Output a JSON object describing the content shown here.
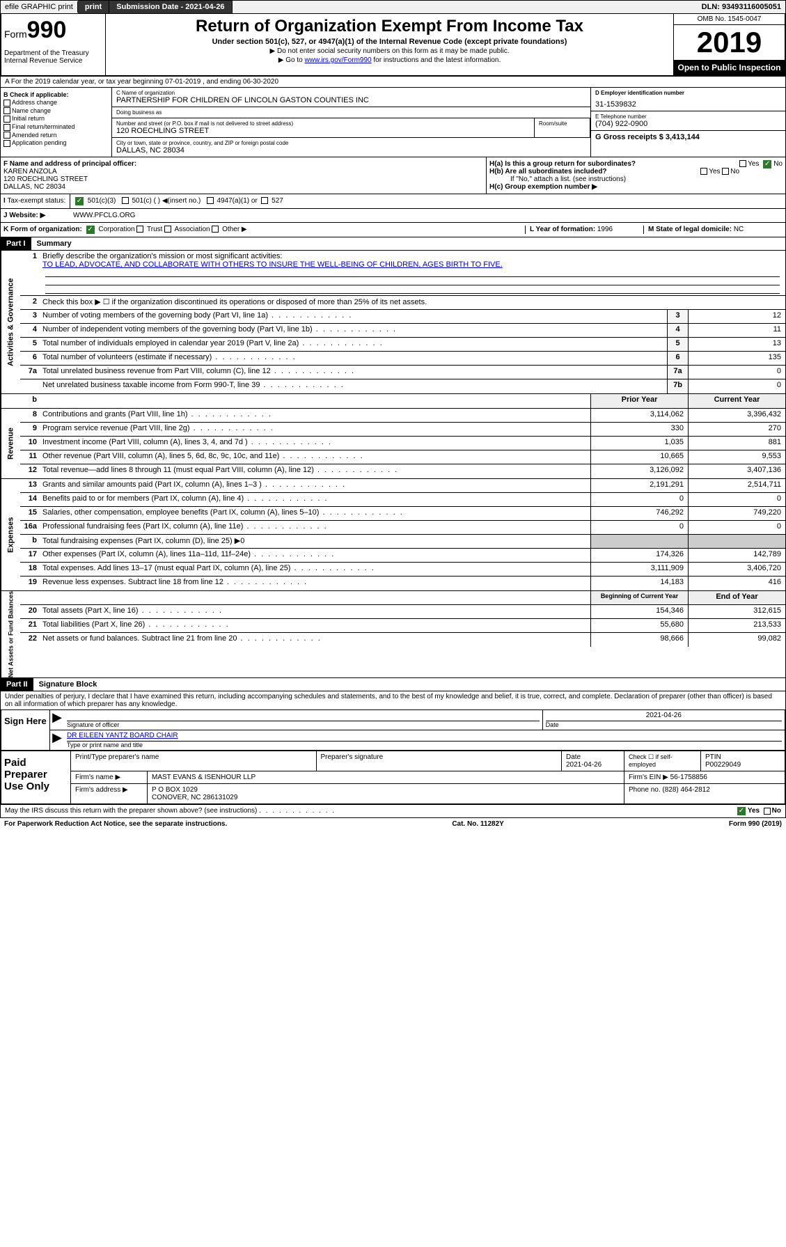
{
  "top": {
    "efile": "efile GRAPHIC print",
    "submission": "Submission Date - 2021-04-26",
    "dln": "DLN: 93493116005051"
  },
  "header": {
    "form_prefix": "Form",
    "form_num": "990",
    "dept": "Department of the Treasury\nInternal Revenue Service",
    "title": "Return of Organization Exempt From Income Tax",
    "subtitle": "Under section 501(c), 527, or 4947(a)(1) of the Internal Revenue Code (except private foundations)",
    "note1": "▶ Do not enter social security numbers on this form as it may be made public.",
    "note2_pre": "▶ Go to ",
    "note2_link": "www.irs.gov/Form990",
    "note2_post": " for instructions and the latest information.",
    "omb": "OMB No. 1545-0047",
    "year": "2019",
    "open": "Open to Public Inspection"
  },
  "line_a": "A For the 2019 calendar year, or tax year beginning 07-01-2019    , and ending 06-30-2020",
  "b": {
    "label": "B Check if applicable:",
    "items": [
      "Address change",
      "Name change",
      "Initial return",
      "Final return/terminated",
      "Amended return",
      "Application pending"
    ]
  },
  "c": {
    "name_lbl": "C Name of organization",
    "name": "PARTNERSHIP FOR CHILDREN OF LINCOLN GASTON COUNTIES INC",
    "dba_lbl": "Doing business as",
    "dba": "",
    "addr_lbl": "Number and street (or P.O. box if mail is not delivered to street address)",
    "addr": "120 ROECHLING STREET",
    "room_lbl": "Room/suite",
    "city_lbl": "City or town, state or province, country, and ZIP or foreign postal code",
    "city": "DALLAS, NC  28034"
  },
  "d": {
    "lbl": "D Employer identification number",
    "val": "31-1539832"
  },
  "e": {
    "lbl": "E Telephone number",
    "val": "(704) 922-0900"
  },
  "g": {
    "lbl": "G Gross receipts $ 3,413,144"
  },
  "f": {
    "lbl": "F  Name and address of principal officer:",
    "name": "KAREN ANZOLA",
    "addr1": "120 ROECHLING STREET",
    "addr2": "DALLAS, NC  28034"
  },
  "h": {
    "a": "H(a)  Is this a group return for subordinates?",
    "b": "H(b)  Are all subordinates included?",
    "note": "If \"No,\" attach a list. (see instructions)",
    "c": "H(c)  Group exemption number ▶",
    "yes": "Yes",
    "no": "No"
  },
  "i": {
    "lbl": "Tax-exempt status:",
    "c3": "501(c)(3)",
    "c": "501(c) ( )",
    "ins": "◀(insert no.)",
    "a1": "4947(a)(1) or",
    "527": "527"
  },
  "j": {
    "lbl": "Website: ▶",
    "val": " WWW.PFCLG.ORG"
  },
  "k": {
    "lbl": "K Form of organization:",
    "corp": "Corporation",
    "trust": "Trust",
    "assoc": "Association",
    "other": "Other ▶",
    "l_lbl": "L Year of formation: ",
    "l_val": "1996",
    "m_lbl": "M State of legal domicile: ",
    "m_val": "NC"
  },
  "part1": {
    "hdr": "Part I",
    "title": "Summary"
  },
  "gov": {
    "side": "Activities & Governance",
    "q1": "Briefly describe the organization's mission or most significant activities:",
    "q1_val": "TO LEAD, ADVOCATE, AND COLLABORATE WITH OTHERS TO INSURE THE WELL-BEING OF CHILDREN, AGES BIRTH TO FIVE.",
    "q2": "Check this box ▶ ☐  if the organization discontinued its operations or disposed of more than 25% of its net assets.",
    "rows": [
      {
        "n": "3",
        "t": "Number of voting members of the governing body (Part VI, line 1a)",
        "c": "3",
        "v": "12"
      },
      {
        "n": "4",
        "t": "Number of independent voting members of the governing body (Part VI, line 1b)",
        "c": "4",
        "v": "11"
      },
      {
        "n": "5",
        "t": "Total number of individuals employed in calendar year 2019 (Part V, line 2a)",
        "c": "5",
        "v": "13"
      },
      {
        "n": "6",
        "t": "Total number of volunteers (estimate if necessary)",
        "c": "6",
        "v": "135"
      },
      {
        "n": "7a",
        "t": "Total unrelated business revenue from Part VIII, column (C), line 12",
        "c": "7a",
        "v": "0"
      },
      {
        "n": "",
        "t": "Net unrelated business taxable income from Form 990-T, line 39",
        "c": "7b",
        "v": "0"
      }
    ]
  },
  "rev": {
    "side": "Revenue",
    "hdr_prior": "Prior Year",
    "hdr_cur": "Current Year",
    "rows": [
      {
        "n": "8",
        "t": "Contributions and grants (Part VIII, line 1h)",
        "p": "3,114,062",
        "c": "3,396,432"
      },
      {
        "n": "9",
        "t": "Program service revenue (Part VIII, line 2g)",
        "p": "330",
        "c": "270"
      },
      {
        "n": "10",
        "t": "Investment income (Part VIII, column (A), lines 3, 4, and 7d )",
        "p": "1,035",
        "c": "881"
      },
      {
        "n": "11",
        "t": "Other revenue (Part VIII, column (A), lines 5, 6d, 8c, 9c, 10c, and 11e)",
        "p": "10,665",
        "c": "9,553"
      },
      {
        "n": "12",
        "t": "Total revenue—add lines 8 through 11 (must equal Part VIII, column (A), line 12)",
        "p": "3,126,092",
        "c": "3,407,136"
      }
    ]
  },
  "exp": {
    "side": "Expenses",
    "rows": [
      {
        "n": "13",
        "t": "Grants and similar amounts paid (Part IX, column (A), lines 1–3 )",
        "p": "2,191,291",
        "c": "2,514,711"
      },
      {
        "n": "14",
        "t": "Benefits paid to or for members (Part IX, column (A), line 4)",
        "p": "0",
        "c": "0"
      },
      {
        "n": "15",
        "t": "Salaries, other compensation, employee benefits (Part IX, column (A), lines 5–10)",
        "p": "746,292",
        "c": "749,220"
      },
      {
        "n": "16a",
        "t": "Professional fundraising fees (Part IX, column (A), line 11e)",
        "p": "0",
        "c": "0"
      },
      {
        "n": "b",
        "t": "Total fundraising expenses (Part IX, column (D), line 25) ▶0",
        "p": "",
        "c": ""
      },
      {
        "n": "17",
        "t": "Other expenses (Part IX, column (A), lines 11a–11d, 11f–24e)",
        "p": "174,326",
        "c": "142,789"
      },
      {
        "n": "18",
        "t": "Total expenses. Add lines 13–17 (must equal Part IX, column (A), line 25)",
        "p": "3,111,909",
        "c": "3,406,720"
      },
      {
        "n": "19",
        "t": "Revenue less expenses. Subtract line 18 from line 12",
        "p": "14,183",
        "c": "416"
      }
    ]
  },
  "net": {
    "side": "Net Assets or Fund Balances",
    "hdr_beg": "Beginning of Current Year",
    "hdr_end": "End of Year",
    "rows": [
      {
        "n": "20",
        "t": "Total assets (Part X, line 16)",
        "p": "154,346",
        "c": "312,615"
      },
      {
        "n": "21",
        "t": "Total liabilities (Part X, line 26)",
        "p": "55,680",
        "c": "213,533"
      },
      {
        "n": "22",
        "t": "Net assets or fund balances. Subtract line 21 from line 20",
        "p": "98,666",
        "c": "99,082"
      }
    ]
  },
  "part2": {
    "hdr": "Part II",
    "title": "Signature Block"
  },
  "penalty": "Under penalties of perjury, I declare that I have examined this return, including accompanying schedules and statements, and to the best of my knowledge and belief, it is true, correct, and complete. Declaration of preparer (other than officer) is based on all information of which preparer has any knowledge.",
  "sign": {
    "left": "Sign Here",
    "date": "2021-04-26",
    "sig_lbl": "Signature of officer",
    "date_lbl": "Date",
    "name": "DR EILEEN YANTZ  BOARD CHAIR",
    "name_lbl": "Type or print name and title"
  },
  "paid": {
    "left": "Paid Preparer Use Only",
    "h1": "Print/Type preparer's name",
    "h2": "Preparer's signature",
    "h3": "Date",
    "h4": "Check ☐ if self-employed",
    "h5": "PTIN",
    "date": "2021-04-26",
    "ptin": "P00229049",
    "firm_lbl": "Firm's name    ▶",
    "firm": "MAST EVANS & ISENHOUR LLP",
    "ein_lbl": "Firm's EIN ▶ ",
    "ein": "56-1758856",
    "addr_lbl": "Firm's address ▶",
    "addr1": "P O BOX 1029",
    "addr2": "CONOVER, NC  286131029",
    "phone_lbl": "Phone no. ",
    "phone": "(828) 464-2812"
  },
  "footer": {
    "q": "May the IRS discuss this return with the preparer shown above? (see instructions)",
    "yes": "Yes",
    "no": "No",
    "pra": "For Paperwork Reduction Act Notice, see the separate instructions.",
    "cat": "Cat. No. 11282Y",
    "form": "Form 990 (2019)"
  }
}
